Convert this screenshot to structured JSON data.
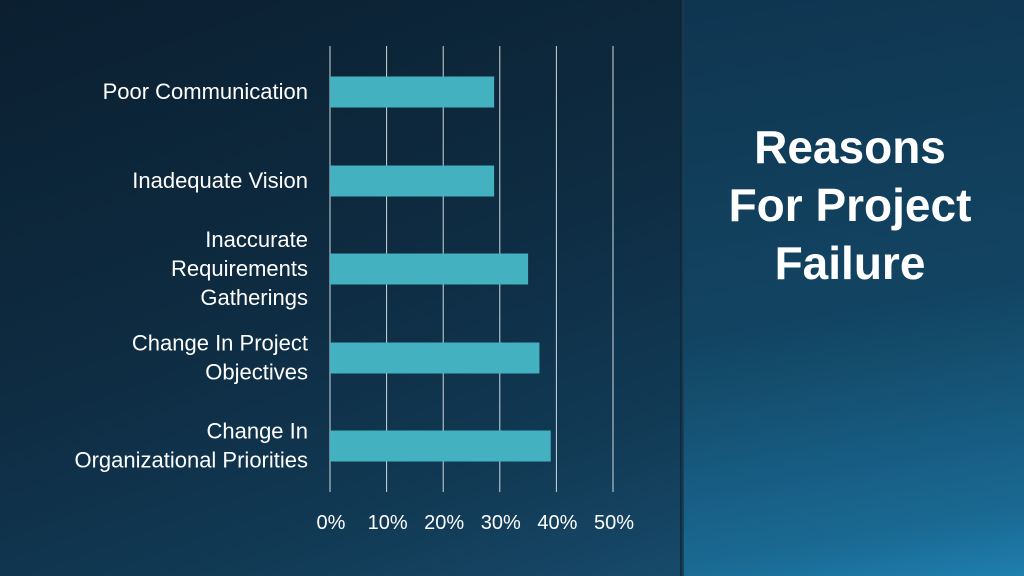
{
  "slide": {
    "side_title": "Reasons For Project Failure"
  },
  "colors": {
    "bar": "#43b1c0",
    "gridline": "#cfd8dd",
    "text": "#ffffff"
  },
  "chart_data": {
    "type": "bar",
    "orientation": "horizontal",
    "title": "",
    "xlabel": "",
    "ylabel": "",
    "categories": [
      "Poor Communication",
      "Inadequate Vision",
      "Inaccurate Requirements Gatherings",
      "Change In Project Objectives",
      "Change In Organizational Priorities"
    ],
    "category_lines": [
      [
        "Poor Communication"
      ],
      [
        "Inadequate Vision"
      ],
      [
        "Inaccurate",
        "Requirements",
        "Gatherings"
      ],
      [
        "Change In Project",
        "Objectives"
      ],
      [
        "Change In",
        "Organizational Priorities"
      ]
    ],
    "values": [
      29,
      29,
      35,
      37,
      39
    ],
    "xlim": [
      0,
      50
    ],
    "xticks": [
      0,
      10,
      20,
      30,
      40,
      50
    ],
    "xtick_labels": [
      "0%",
      "10%",
      "20%",
      "30%",
      "40%",
      "50%"
    ],
    "grid": true,
    "legend": "none"
  }
}
